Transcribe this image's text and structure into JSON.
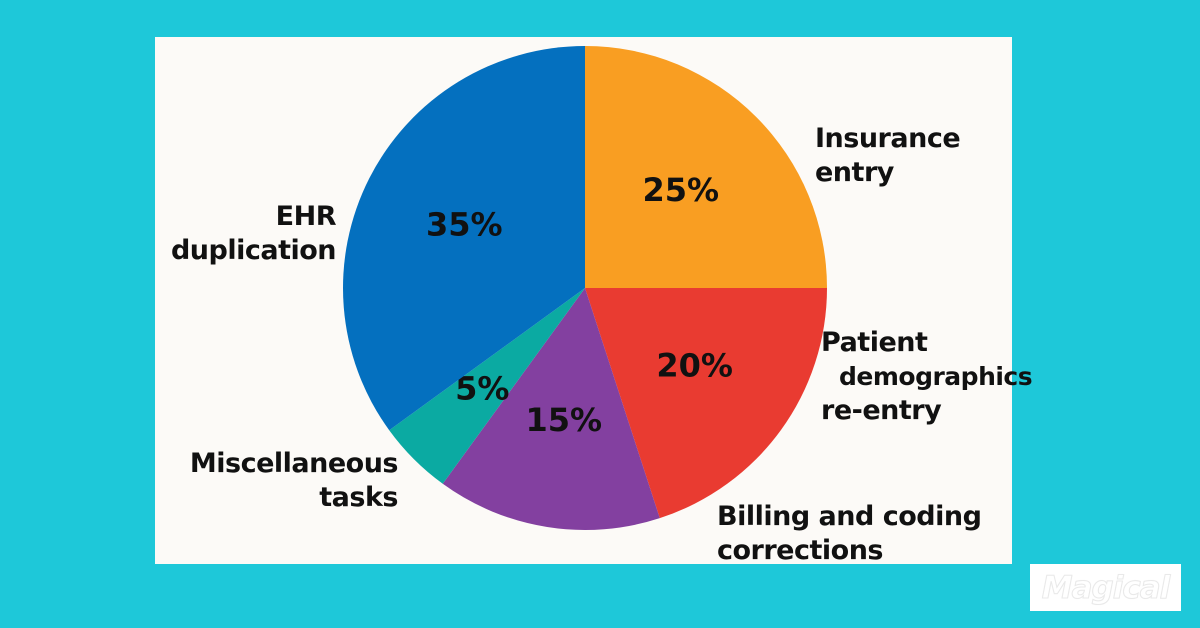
{
  "chart_data": {
    "type": "pie",
    "title": "",
    "slices": [
      {
        "label_lines": [
          "Insurance",
          "entry"
        ],
        "value": 25,
        "value_label": "25%",
        "color": "#f99e22"
      },
      {
        "label_lines": [
          "Patient",
          "demographics",
          "re-entry"
        ],
        "value": 20,
        "value_label": "20%",
        "color": "#e93b31"
      },
      {
        "label_lines": [
          "Billing and coding",
          "corrections"
        ],
        "value": 15,
        "value_label": "15%",
        "color": "#8340a0"
      },
      {
        "label_lines": [
          "Miscellaneous",
          "tasks"
        ],
        "value": 5,
        "value_label": "5%",
        "color": "#0baaa2"
      },
      {
        "label_lines": [
          "EHR",
          "duplication"
        ],
        "value": 35,
        "value_label": "35%",
        "color": "#0470bf"
      }
    ],
    "start_angle_deg": 0,
    "direction": "clockwise"
  },
  "colors": {
    "background": "#1ec8d9",
    "card": "#fcfaf7"
  },
  "logo": {
    "text": "Magical"
  }
}
